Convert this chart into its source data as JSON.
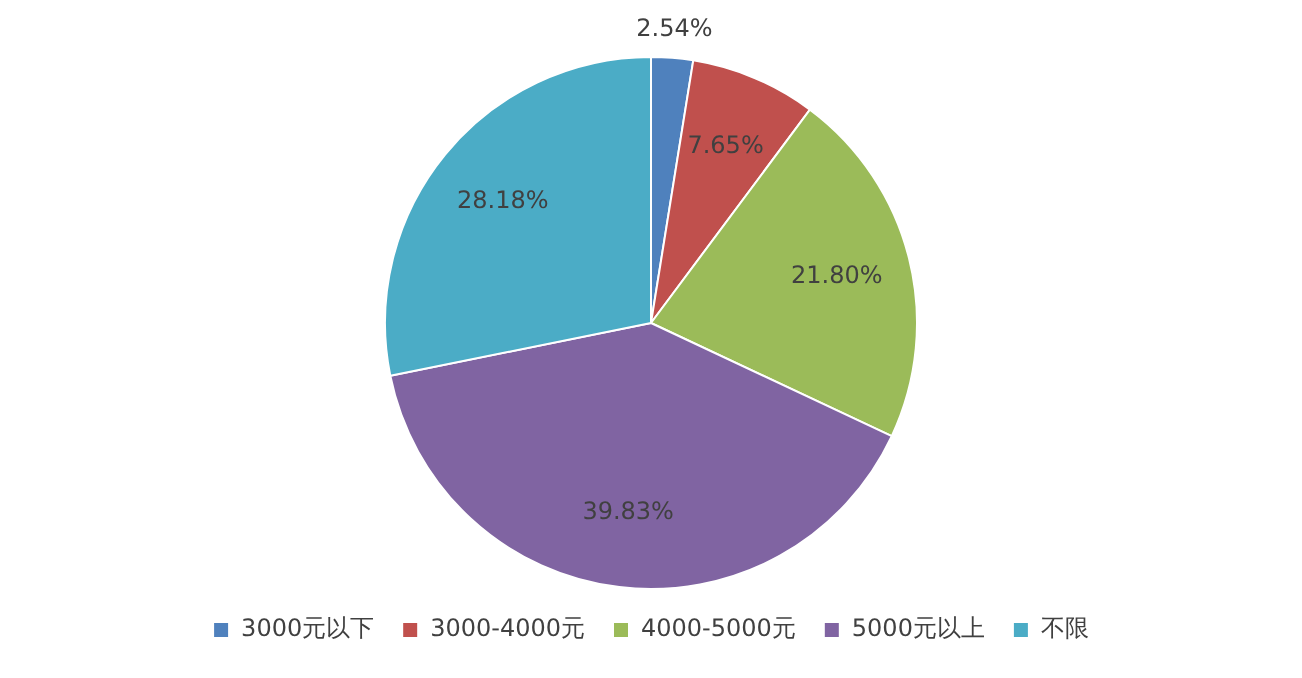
{
  "chart_data": {
    "type": "pie",
    "categories": [
      "3000元以下",
      "3000-4000元",
      "4000-5000元",
      "5000元以上",
      "不限"
    ],
    "values": [
      2.54,
      7.65,
      21.8,
      39.83,
      28.18
    ],
    "colors": [
      "#4f81bd",
      "#c0504d",
      "#9bbb59",
      "#8064a2",
      "#4bacc6"
    ],
    "value_labels": [
      "2.54%",
      "7.65%",
      "21.80%",
      "39.83%",
      "28.18%"
    ],
    "legend": "bottom"
  }
}
